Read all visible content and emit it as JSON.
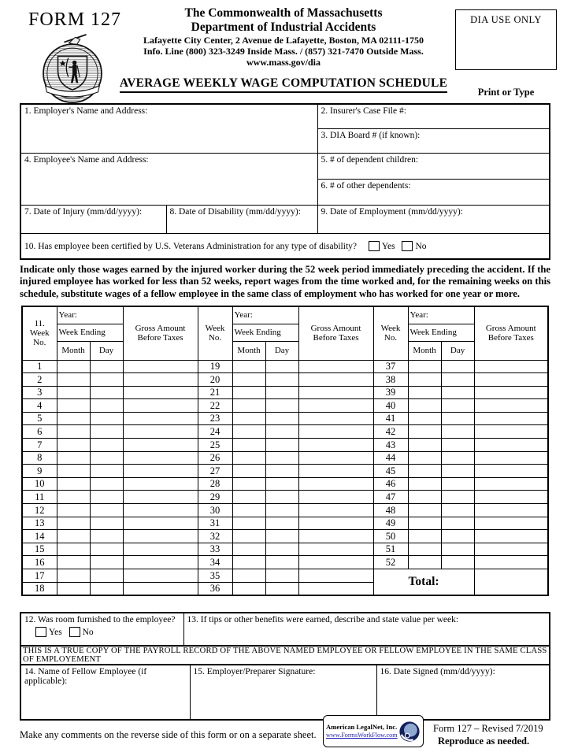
{
  "header": {
    "form_number": "FORM 127",
    "org_line1": "The Commonwealth of Massachusetts",
    "org_line2": "Department of Industrial Accidents",
    "address": "Lafayette City Center, 2 Avenue de Lafayette, Boston, MA 02111-1750",
    "info_line": "Info. Line (800) 323-3249  Inside Mass.  /  (857) 321-7470 Outside Mass.",
    "website": "www.mass.gov/dia",
    "title": "AVERAGE WEEKLY WAGE COMPUTATION SCHEDULE",
    "dia_box": "DIA USE ONLY",
    "print_or_type": "Print or Type"
  },
  "fields": {
    "f1": "1. Employer's Name and Address:",
    "f2": "2. Insurer's Case File #:",
    "f3": "3. DIA Board # (if known):",
    "f4": "4. Employee's Name and Address:",
    "f5": "5. # of dependent children:",
    "f6": "6. # of other dependents:",
    "f7": "7. Date of Injury (mm/dd/yyyy):",
    "f8": "8. Date of Disability  (mm/dd/yyyy):",
    "f9": "9. Date of Employment  (mm/dd/yyyy):",
    "f10": "10. Has employee been certified by U.S. Veterans Administration for any type of disability?",
    "yes_label": "Yes",
    "no_label": "No"
  },
  "instructions": "Indicate only those wages earned by the injured worker during the 52 week period immediately preceding the accident.  If the injured employee has worked for less than 52 weeks, report wages from the time worked and, for the remaining weeks on this schedule, substitute wages of a fellow employee in the same class of employment  who has worked for one year or more.",
  "wage_table": {
    "item_number": "11.",
    "week_no_label": "Week No.",
    "year_label": "Year:",
    "week_ending_label": "Week Ending",
    "month_label": "Month",
    "day_label": "Day",
    "gross_label": "Gross Amount Before Taxes",
    "total_label": "Total:",
    "rows": [
      [
        1,
        19,
        37
      ],
      [
        2,
        20,
        38
      ],
      [
        3,
        21,
        39
      ],
      [
        4,
        22,
        40
      ],
      [
        5,
        23,
        41
      ],
      [
        6,
        24,
        42
      ],
      [
        7,
        25,
        43
      ],
      [
        8,
        26,
        44
      ],
      [
        9,
        27,
        45
      ],
      [
        10,
        28,
        46
      ],
      [
        11,
        29,
        47
      ],
      [
        12,
        30,
        48
      ],
      [
        13,
        31,
        49
      ],
      [
        14,
        32,
        50
      ],
      [
        15,
        33,
        51
      ],
      [
        16,
        34,
        52
      ],
      [
        17,
        35
      ],
      [
        18,
        36
      ]
    ]
  },
  "bottom": {
    "f12": "12. Was room furnished to the employee?",
    "f13": "13. If tips or other benefits were earned, describe and state value per week:",
    "true_copy": "THIS IS A TRUE COPY OF THE PAYROLL RECORD OF THE ABOVE NAMED EMPLOYEE OR FELLOW EMPLOYEE IN THE SAME CLASS OF EMPLOYEMENT",
    "f14": "14. Name of Fellow Employee (if applicable):",
    "f15": "15. Employer/Preparer  Signature:",
    "f16": "16. Date Signed (mm/dd/yyyy):"
  },
  "footer": {
    "comments": "Make any comments on the reverse side of this form or on a separate sheet.",
    "legalnet_name": "American LegalNet, Inc.",
    "legalnet_url": "www.FormsWorkFlow.com",
    "revision": "Form 127 – Revised 7/2019",
    "reproduce": "Reproduce as needed."
  },
  "colors": {
    "link_blue": "#2222bb",
    "logo_navy": "#12205e",
    "logo_sphere": "#8fa8cf"
  }
}
